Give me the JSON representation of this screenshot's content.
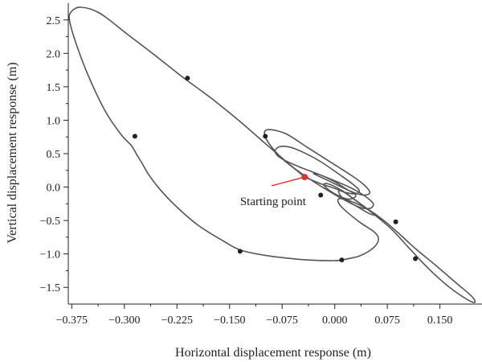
{
  "chart_data": {
    "type": "line",
    "title": "",
    "xlabel": "Horizontal displacement response (m)",
    "ylabel": "Vertical displacement response (m)",
    "xlim": [
      -0.38,
      0.21
    ],
    "ylim": [
      -1.75,
      2.75
    ],
    "x_ticks": [
      -0.375,
      -0.3,
      -0.225,
      -0.15,
      -0.075,
      0.0,
      0.075,
      0.15
    ],
    "x_tick_labels": [
      "−0.375",
      "−0.300",
      "−0.225",
      "−0.150",
      "−0.075",
      "0.000",
      "0.075",
      "0.150"
    ],
    "y_ticks": [
      -1.5,
      -1.0,
      -0.5,
      0.0,
      0.5,
      1.0,
      1.5,
      2.0,
      2.5
    ],
    "y_tick_labels": [
      "−1.5",
      "−1.0",
      "−0.5",
      "0.0",
      "0.5",
      "1.0",
      "1.5",
      "2.0",
      "2.5"
    ],
    "grid": false,
    "line_color": "#555555",
    "series": [
      {
        "x": [
          -0.043,
          -0.06,
          -0.08,
          -0.1,
          -0.135,
          -0.175,
          -0.215,
          -0.255,
          -0.295,
          -0.335,
          -0.362,
          -0.376,
          -0.378,
          -0.368,
          -0.35,
          -0.327,
          -0.305,
          -0.29,
          -0.282,
          -0.275,
          -0.265,
          -0.248,
          -0.225,
          -0.195,
          -0.16,
          -0.135,
          -0.1,
          -0.07,
          -0.04,
          0.0,
          0.015,
          0.035,
          0.05,
          0.06,
          0.062,
          0.055,
          0.035,
          0.01,
          0.005,
          0.02,
          0.045,
          0.07,
          0.09,
          0.115,
          0.145,
          0.175,
          0.195,
          0.2,
          0.192,
          0.17,
          0.15,
          0.13,
          0.105,
          0.08,
          0.055,
          0.03,
          0.01
        ],
        "y": [
          0.15,
          0.3,
          0.48,
          0.66,
          0.98,
          1.32,
          1.63,
          1.96,
          2.28,
          2.6,
          2.69,
          2.62,
          2.48,
          2.12,
          1.63,
          1.13,
          0.79,
          0.62,
          0.48,
          0.36,
          0.18,
          -0.05,
          -0.3,
          -0.57,
          -0.8,
          -0.94,
          -1.02,
          -1.06,
          -1.09,
          -1.1,
          -1.08,
          -1.03,
          -0.95,
          -0.85,
          -0.75,
          -0.66,
          -0.52,
          -0.3,
          -0.18,
          -0.2,
          -0.32,
          -0.5,
          -0.68,
          -0.92,
          -1.18,
          -1.45,
          -1.63,
          -1.72,
          -1.7,
          -1.55,
          -1.38,
          -1.18,
          -0.9,
          -0.62,
          -0.4,
          -0.2,
          -0.05
        ]
      },
      {
        "x": [
          -0.043,
          -0.02,
          0.0,
          0.015,
          0.03,
          0.035,
          0.025,
          0.005,
          -0.02,
          -0.045,
          -0.065,
          -0.08,
          -0.085,
          -0.075,
          -0.05,
          -0.02,
          0.01,
          0.03,
          0.045,
          0.055,
          0.05,
          0.035,
          0.015,
          -0.01,
          -0.04,
          -0.07,
          -0.09,
          -0.1,
          -0.095,
          -0.07,
          -0.04,
          -0.01,
          0.02,
          0.04,
          0.05,
          0.04,
          0.02,
          -0.01,
          -0.03,
          -0.02,
          0.0,
          0.015,
          0.03,
          0.02,
          0.0,
          -0.015,
          -0.01,
          0.01,
          0.03,
          0.05,
          0.06,
          0.05,
          0.03,
          0.01,
          0.005
        ],
        "y": [
          0.15,
          0.05,
          -0.02,
          -0.08,
          -0.1,
          -0.05,
          0.05,
          0.2,
          0.38,
          0.52,
          0.6,
          0.6,
          0.52,
          0.42,
          0.3,
          0.18,
          0.05,
          -0.05,
          -0.15,
          -0.25,
          -0.32,
          -0.3,
          -0.2,
          -0.05,
          0.15,
          0.38,
          0.6,
          0.78,
          0.86,
          0.8,
          0.6,
          0.4,
          0.2,
          0.05,
          -0.08,
          -0.12,
          -0.05,
          0.1,
          0.2,
          0.18,
          0.08,
          -0.02,
          -0.12,
          -0.18,
          -0.1,
          0.02,
          0.05,
          -0.05,
          -0.2,
          -0.35,
          -0.42,
          -0.4,
          -0.28,
          -0.15,
          -0.05
        ]
      }
    ],
    "markers": [
      {
        "x": -0.21,
        "y": 1.63
      },
      {
        "x": -0.285,
        "y": 0.76
      },
      {
        "x": -0.135,
        "y": -0.96
      },
      {
        "x": 0.01,
        "y": -1.09
      },
      {
        "x": 0.087,
        "y": -0.52
      },
      {
        "x": 0.115,
        "y": -1.07
      },
      {
        "x": -0.099,
        "y": 0.76
      },
      {
        "x": -0.02,
        "y": -0.12
      }
    ],
    "start_point": {
      "x": -0.043,
      "y": 0.15,
      "color": "#e03030"
    },
    "annotation": {
      "text": "Starting point",
      "text_x": -0.135,
      "text_y": -0.27,
      "arrow_from_x": -0.09,
      "arrow_from_y": 0.02,
      "arrow_color": "#e03030"
    }
  }
}
